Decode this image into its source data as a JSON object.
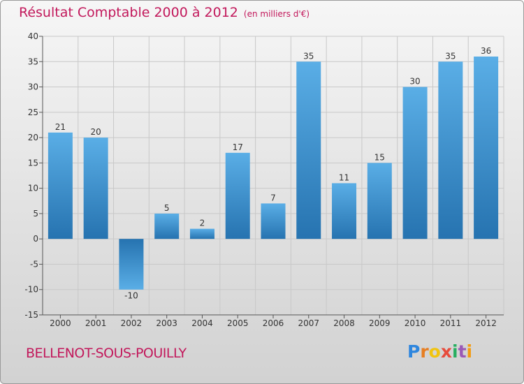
{
  "header": {
    "title": "Résultat Comptable 2000 à 2012",
    "unit": "(en milliers d'€)"
  },
  "footer": {
    "municipality": "BELLENOT-SOUS-POUILLY",
    "brand": "Proxiti"
  },
  "colors": {
    "title": "#c2185b",
    "bar_top": "#5aaee6",
    "bar_bottom": "#2673b0",
    "logo_letters": [
      "#2e86de",
      "#e67e22",
      "#f1c40f",
      "#e74c3c",
      "#27ae60",
      "#9b59b6",
      "#f39c12"
    ]
  },
  "chart_data": {
    "type": "bar",
    "title": "Résultat Comptable 2000 à 2012",
    "xlabel": "",
    "ylabel": "",
    "categories": [
      "2000",
      "2001",
      "2002",
      "2003",
      "2004",
      "2005",
      "2006",
      "2007",
      "2008",
      "2009",
      "2010",
      "2011",
      "2012"
    ],
    "values": [
      21,
      20,
      -10,
      5,
      2,
      17,
      7,
      35,
      11,
      15,
      30,
      35,
      36
    ],
    "value_labels": [
      "21",
      "20",
      "-10",
      "5",
      "2",
      "17",
      "7",
      "35",
      "11",
      "15",
      "30",
      "35",
      "36"
    ],
    "ylim": [
      -15,
      40
    ],
    "yticks": [
      40,
      35,
      30,
      25,
      20,
      15,
      10,
      5,
      0,
      -5,
      -10,
      -15
    ],
    "ytick_labels": [
      "40",
      "35",
      "30",
      "25",
      "20",
      "15",
      "10",
      "5",
      "0",
      "-5",
      "-10",
      "-15"
    ],
    "grid": true
  }
}
